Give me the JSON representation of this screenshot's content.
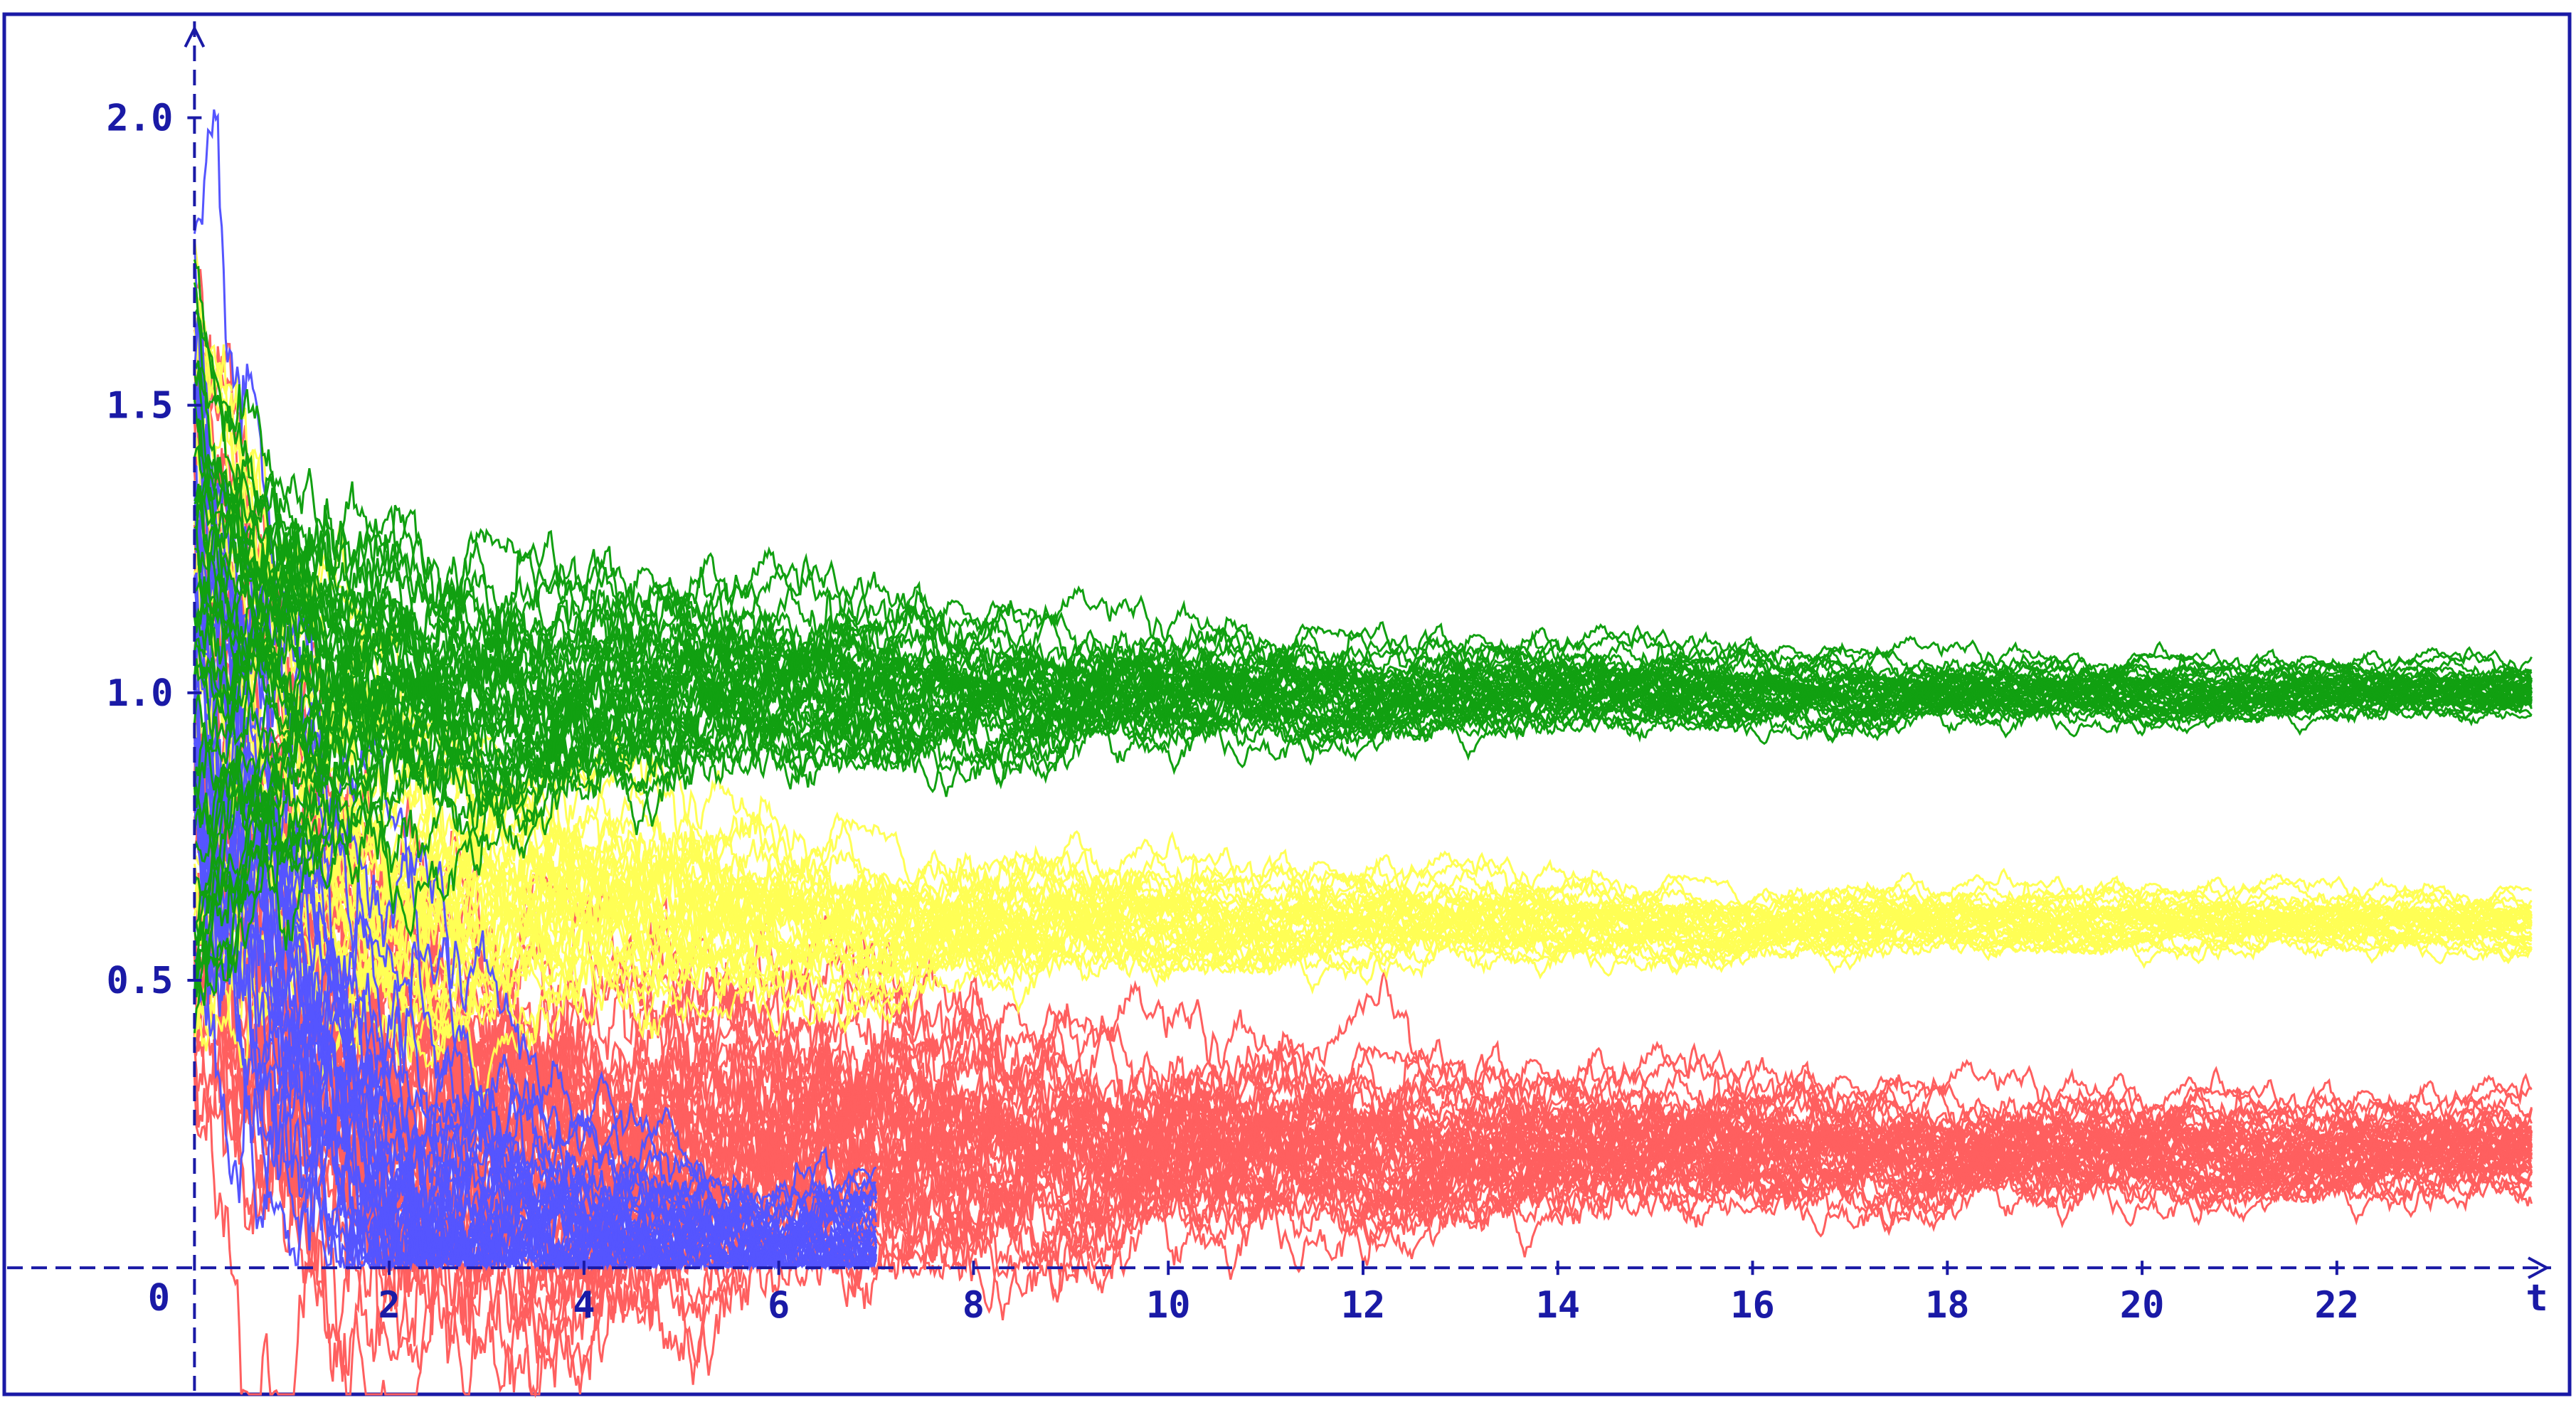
{
  "chart_data": {
    "type": "line",
    "title": "",
    "xlabel": "t",
    "ylabel": "",
    "origin_label": "0",
    "xlim": [
      -0.2,
      24.2
    ],
    "ylim": [
      -0.22,
      2.18
    ],
    "x_ticks": [
      {
        "value": 2,
        "label": "2"
      },
      {
        "value": 4,
        "label": "4"
      },
      {
        "value": 6,
        "label": "6"
      },
      {
        "value": 8,
        "label": "8"
      },
      {
        "value": 10,
        "label": "10"
      },
      {
        "value": 12,
        "label": "12"
      },
      {
        "value": 14,
        "label": "14"
      },
      {
        "value": 16,
        "label": "16"
      },
      {
        "value": 18,
        "label": "18"
      },
      {
        "value": 20,
        "label": "20"
      },
      {
        "value": 22,
        "label": "22"
      }
    ],
    "y_ticks": [
      {
        "value": 0.5,
        "label": "0.5"
      },
      {
        "value": 1.0,
        "label": "1.0"
      },
      {
        "value": 1.5,
        "label": "1.5"
      },
      {
        "value": 2.0,
        "label": "2.0"
      }
    ],
    "grid": false,
    "colors": {
      "axis": "#1a1aa6",
      "frame": "#1a1aa6",
      "blue": "#5555ff",
      "red": "#ff5f5f",
      "yellow": "#ffff55",
      "green": "#11a011"
    },
    "series": [
      {
        "color": "blue",
        "equilibrium": 0.0,
        "paths": 30,
        "x_end": 7.0,
        "noise": 0.35,
        "decay": 1.1
      },
      {
        "color": "red",
        "equilibrium": 0.2,
        "paths": 45,
        "x_end": 24.0,
        "noise": 0.3,
        "decay": 0.45
      },
      {
        "color": "yellow",
        "equilibrium": 0.6,
        "paths": 35,
        "x_end": 24.0,
        "noise": 0.2,
        "decay": 0.55
      },
      {
        "color": "green",
        "equilibrium": 1.0,
        "paths": 40,
        "x_end": 24.0,
        "noise": 0.16,
        "decay": 0.4
      }
    ]
  }
}
